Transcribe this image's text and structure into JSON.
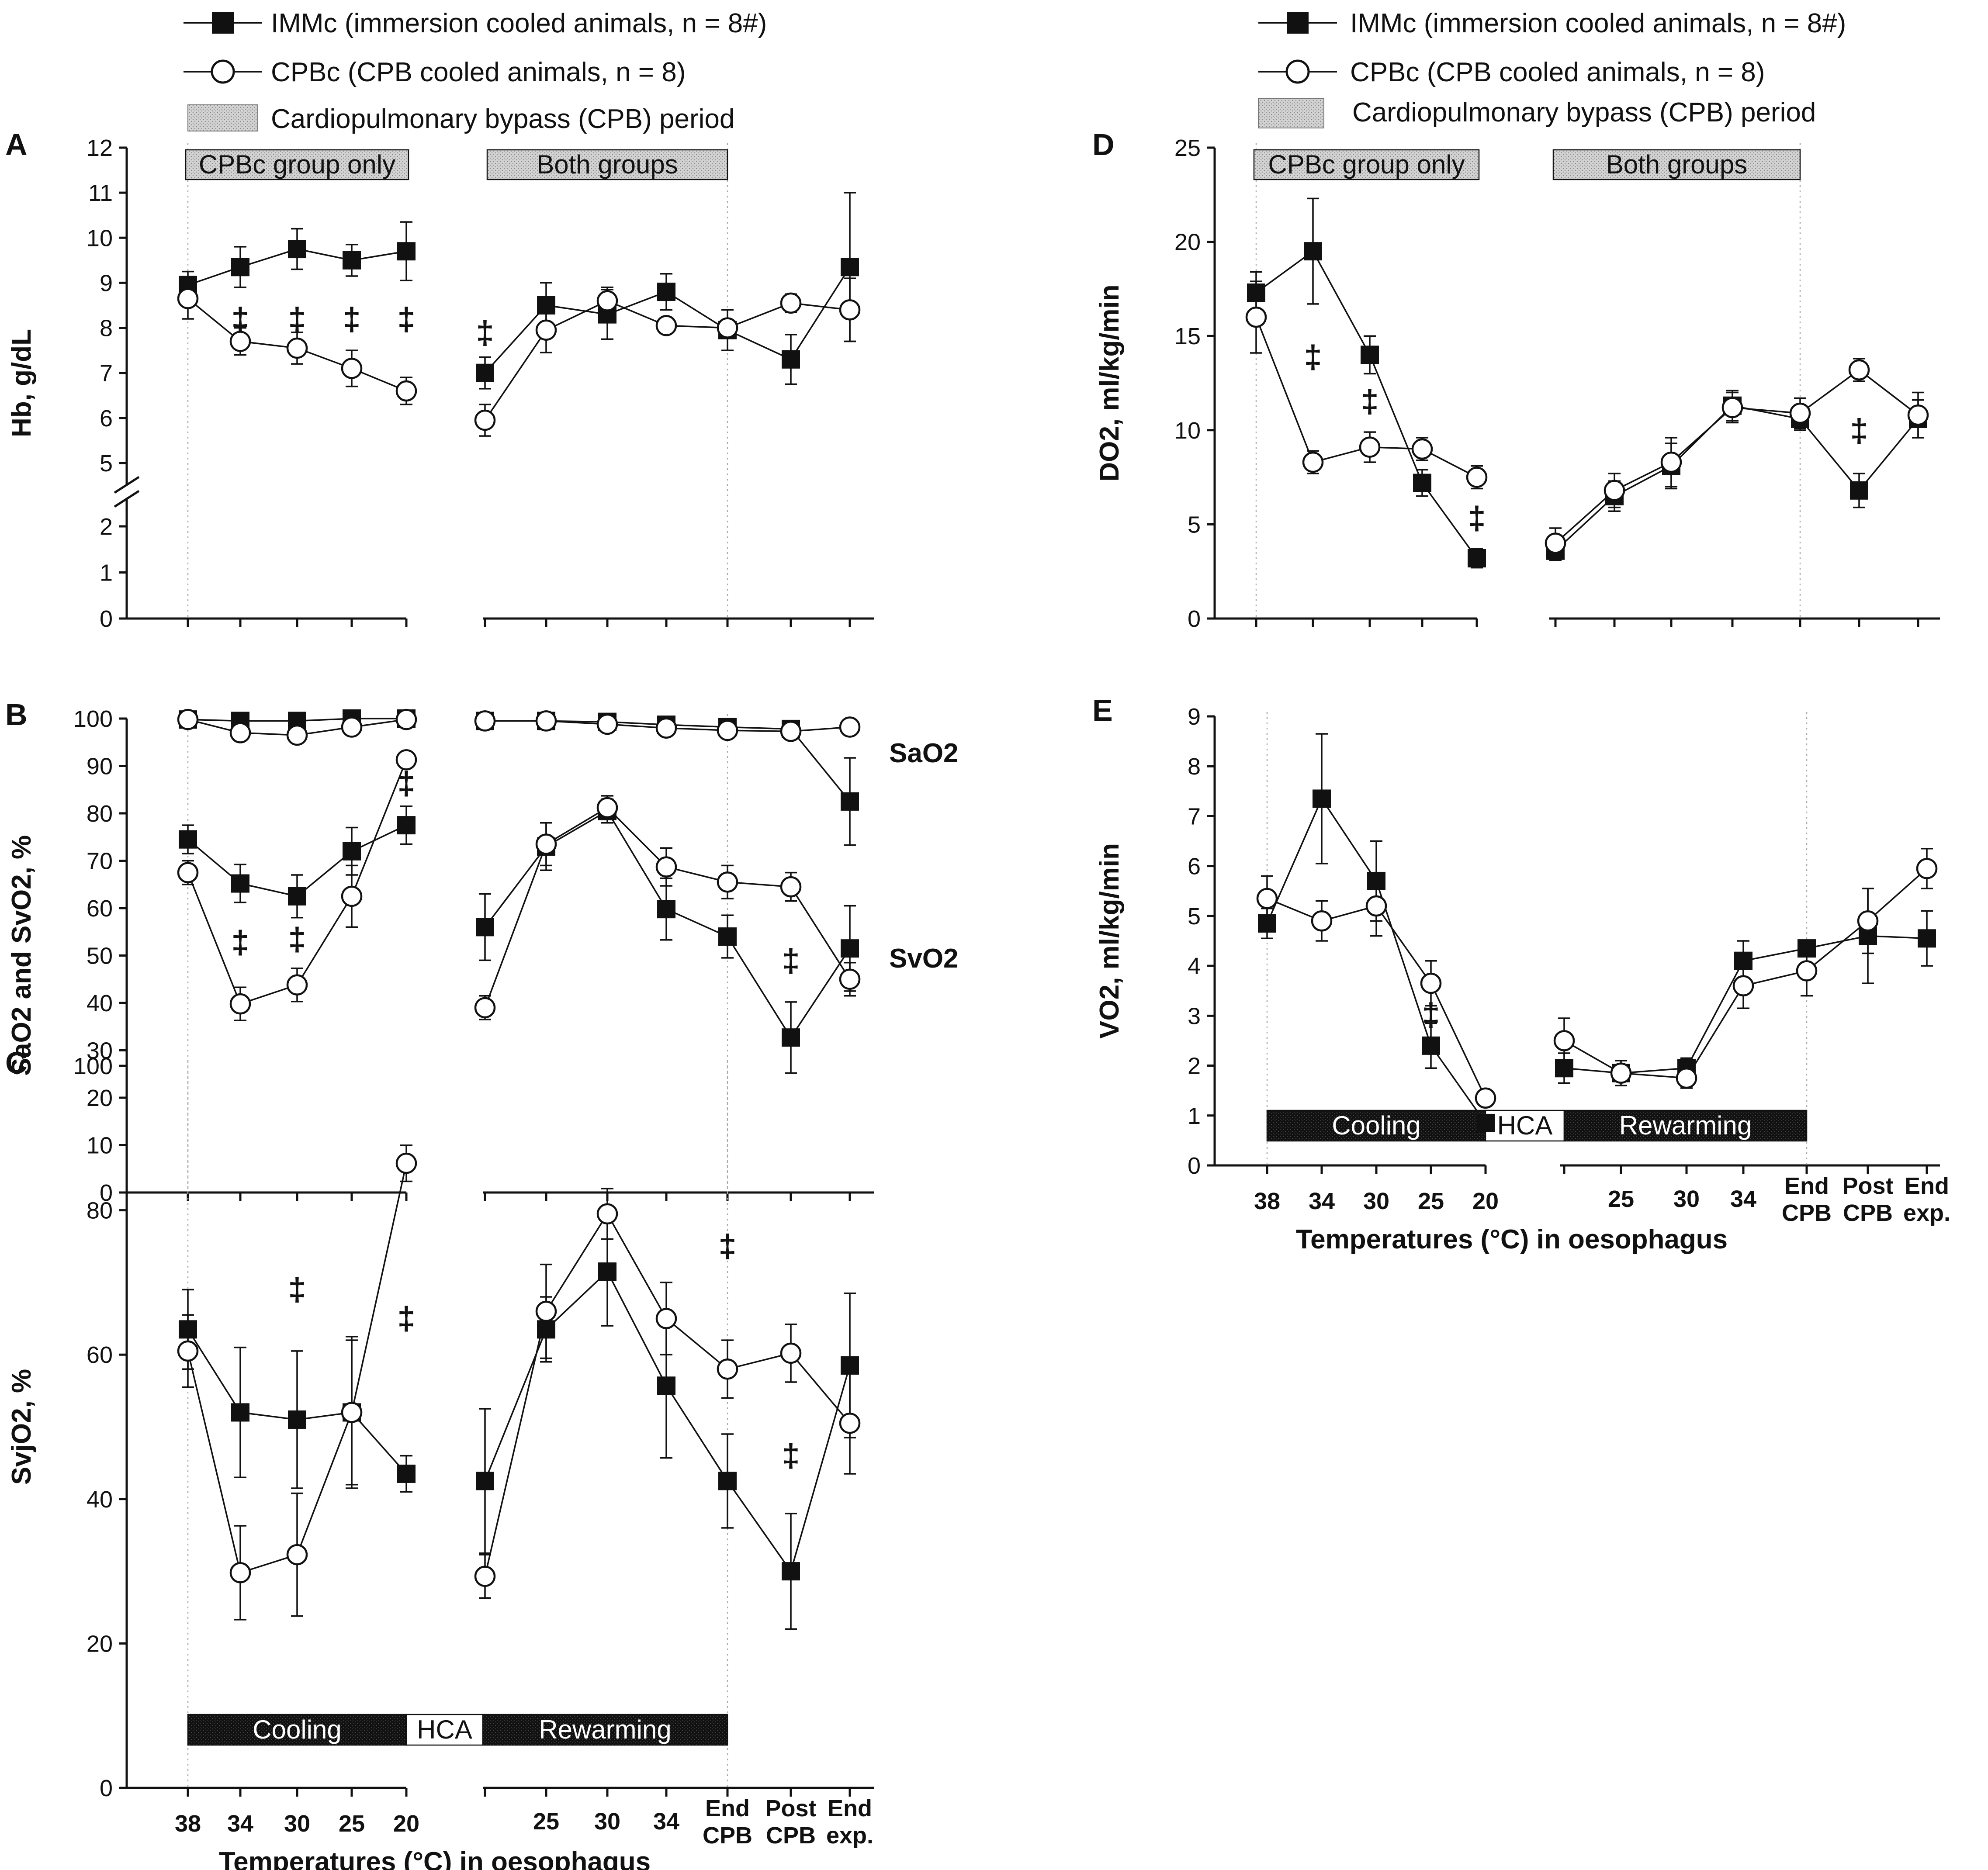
{
  "legend": {
    "imm": "IMMc (immersion cooled animals, n = 8#)",
    "cpb": "CPBc (CPB cooled animals, n = 8)",
    "period": "Cardiopulmonary bypass (CPB) period"
  },
  "bands": {
    "cpb_only": "CPBc group only",
    "both": "Both groups",
    "cooling": "Cooling",
    "hca": "HCA",
    "rewarming": "Rewarming"
  },
  "x_axis": {
    "label": "Temperatures (°C) in oesophagus",
    "left_ticks": [
      "38",
      "34",
      "30",
      "25",
      "20"
    ],
    "right_ticks": [
      "",
      "25",
      "30",
      "34",
      "End CPB",
      "Post CPB",
      "End exp."
    ]
  },
  "colors": {
    "ink": "#111111",
    "band_fill": "#d3d3d3",
    "dark_band": "#111111"
  },
  "chart_data": [
    {
      "id": "A",
      "type": "line",
      "ylabel": "Hb, g/dL",
      "ylim": [
        0,
        12
      ],
      "yticks": [
        0,
        1,
        2,
        5,
        6,
        7,
        8,
        9,
        10,
        11,
        12
      ],
      "axis_break": [
        2,
        5
      ],
      "left": {
        "imm": [
          8.95,
          9.35,
          9.75,
          9.5,
          9.7
        ],
        "imm_err": [
          0.3,
          0.45,
          0.45,
          0.35,
          0.65
        ],
        "cpb": [
          8.65,
          7.7,
          7.55,
          7.1,
          6.6
        ],
        "cpb_err": [
          0.45,
          0.3,
          0.35,
          0.4,
          0.3
        ],
        "sig": [
          "",
          "‡",
          "‡",
          "‡",
          "‡"
        ]
      },
      "right": {
        "imm": [
          7.0,
          8.5,
          8.3,
          8.8,
          7.95,
          7.3,
          9.35
        ],
        "imm_err": [
          0.35,
          0.5,
          0.55,
          0.4,
          0.45,
          0.55,
          1.65
        ],
        "cpb": [
          5.95,
          7.95,
          8.6,
          8.05,
          8.0,
          8.55,
          8.4
        ],
        "cpb_err": [
          0.35,
          0.5,
          0.3,
          0.0,
          0.0,
          0.2,
          0.7
        ],
        "sig": [
          "‡",
          "",
          "",
          "",
          "",
          "",
          ""
        ]
      }
    },
    {
      "id": "B",
      "type": "line",
      "ylabel": "SaO2 and SvO2, %",
      "ylim": [
        0,
        100
      ],
      "yticks": [
        0,
        10,
        20,
        30,
        40,
        50,
        60,
        70,
        80,
        90,
        100
      ],
      "annotations": [
        "SaO2",
        "SvO2"
      ],
      "left": {
        "sa_imm": [
          99.8,
          99.5,
          99.5,
          100,
          100
        ],
        "sa_imm_err": [
          0.3,
          0.5,
          0.5,
          0.3,
          0.3
        ],
        "sa_cpb": [
          99.8,
          97,
          96.5,
          98.2,
          99.8
        ],
        "sa_cpb_err": [
          0.3,
          1.5,
          1.5,
          1.0,
          0.3
        ],
        "sv_imm": [
          74.5,
          65.2,
          62.5,
          72,
          77.5
        ],
        "sv_imm_err": [
          3,
          4,
          4.5,
          5,
          4
        ],
        "sv_cpb": [
          67.5,
          39.8,
          43.8,
          62.5,
          91.3
        ],
        "sv_cpb_err": [
          2.5,
          3.5,
          3.5,
          6.5,
          1.5
        ],
        "sig": [
          "",
          "‡",
          "‡",
          "",
          "‡"
        ]
      },
      "right": {
        "sa_imm": [
          99.5,
          99.5,
          99.3,
          98.7,
          98.2,
          97.8,
          82.5
        ],
        "sa_imm_err": [
          0.3,
          0.5,
          0.5,
          0.5,
          0.6,
          0.8,
          9.2
        ],
        "sa_cpb": [
          99.5,
          99.5,
          98.8,
          98,
          97.5,
          97.3,
          98.2
        ],
        "sa_cpb_err": [
          0.5,
          0.5,
          0.5,
          0.5,
          0.8,
          0.8,
          0.5
        ],
        "sv_imm": [
          56,
          73,
          80.5,
          59.8,
          54,
          32.7,
          51.5
        ],
        "sv_imm_err": [
          7,
          5,
          2.5,
          6.5,
          4.5,
          7.5,
          9
        ],
        "sv_cpb": [
          39,
          73.5,
          81.2,
          68.7,
          65.5,
          64.5,
          45
        ],
        "sv_cpb_err": [
          2.5,
          4.5,
          2.5,
          4,
          3.5,
          3,
          3.5
        ],
        "sig": [
          "",
          "",
          "",
          "",
          "",
          "‡",
          ""
        ]
      }
    },
    {
      "id": "C",
      "type": "line",
      "ylabel": "SvjO2, %",
      "ylim": [
        0,
        100
      ],
      "yticks": [
        0,
        20,
        40,
        60,
        80,
        100
      ],
      "left": {
        "imm": [
          63.5,
          52,
          51,
          52,
          43.5
        ],
        "imm_err": [
          5.5,
          9,
          9.5,
          10.5,
          2.5
        ],
        "cpb": [
          60.5,
          29.8,
          32.3,
          52,
          86.5
        ],
        "cpb_err": [
          5,
          6.5,
          8.5,
          10,
          2.5
        ],
        "sig": [
          "",
          "",
          "‡",
          "",
          "‡"
        ]
      },
      "right": {
        "imm": [
          42.5,
          63.5,
          71.5,
          55.7,
          42.5,
          30,
          58.5
        ],
        "imm_err": [
          10,
          4.5,
          7.5,
          10,
          6.5,
          8,
          10
        ],
        "cpb": [
          29.3,
          66,
          79.5,
          65,
          58,
          60.2,
          50.5
        ],
        "cpb_err": [
          3,
          6.5,
          3.5,
          5,
          4,
          4,
          7
        ],
        "sig": [
          "",
          "",
          "",
          "",
          "‡",
          "‡",
          ""
        ]
      }
    },
    {
      "id": "D",
      "type": "line",
      "ylabel": "DO2, ml/kg/min",
      "ylim": [
        0,
        25
      ],
      "yticks": [
        0,
        5,
        10,
        15,
        20,
        25
      ],
      "left": {
        "imm": [
          17.3,
          19.5,
          14,
          7.2,
          3.2
        ],
        "imm_err": [
          1.1,
          2.8,
          1.0,
          0.7,
          0.5
        ],
        "cpb": [
          16,
          8.3,
          9.1,
          9.0,
          7.5
        ],
        "cpb_err": [
          1.9,
          0.6,
          0.8,
          0.6,
          0.6
        ],
        "sig": [
          "",
          "‡",
          "‡",
          "",
          "‡"
        ]
      },
      "right": {
        "imm": [
          3.6,
          6.5,
          8.1,
          11.3,
          10.6,
          6.8,
          10.6
        ],
        "imm_err": [
          0.5,
          0.8,
          1.2,
          0.8,
          0.6,
          0.9,
          1.0
        ],
        "cpb": [
          4.0,
          6.8,
          8.3,
          11.2,
          10.9,
          13.2,
          10.8
        ],
        "cpb_err": [
          0.8,
          0.9,
          1.3,
          0.8,
          0.8,
          0.6,
          1.2
        ],
        "sig": [
          "",
          "",
          "",
          "",
          "",
          "‡",
          ""
        ]
      }
    },
    {
      "id": "E",
      "type": "line",
      "ylabel": "VO2, ml/kg/min",
      "ylim": [
        0,
        9
      ],
      "yticks": [
        0,
        1,
        2,
        3,
        4,
        5,
        6,
        7,
        8,
        9
      ],
      "left": {
        "imm": [
          4.85,
          7.35,
          5.7,
          2.4,
          0.85
        ],
        "imm_err": [
          0.3,
          1.3,
          0.8,
          0.45,
          0.1
        ],
        "cpb": [
          5.35,
          4.9,
          5.2,
          3.65,
          1.35
        ],
        "cpb_err": [
          0.45,
          0.4,
          0.6,
          0.45,
          0.15
        ],
        "sig": [
          "",
          "",
          "",
          "‡",
          ""
        ]
      },
      "right": {
        "imm": [
          1.95,
          1.85,
          1.95,
          4.1,
          4.35,
          4.6,
          4.55
        ],
        "imm_err": [
          0.3,
          0.15,
          0.2,
          0.4,
          0.0,
          0.95,
          0.55
        ],
        "cpb": [
          2.5,
          1.85,
          1.75,
          3.6,
          3.9,
          4.9,
          5.95
        ],
        "cpb_err": [
          0.45,
          0.25,
          0.2,
          0.45,
          0.5,
          0.65,
          0.4
        ],
        "sig": [
          "",
          "",
          "",
          "",
          "",
          "",
          ""
        ]
      }
    }
  ]
}
